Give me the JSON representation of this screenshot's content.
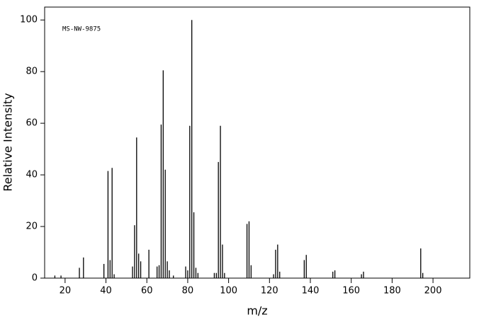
{
  "chart_data": {
    "type": "bar",
    "annotation": "MS-NW-9875",
    "xlabel": "m/z",
    "ylabel": "Relative Intensity",
    "color": "#000000",
    "x": [
      15,
      18,
      27,
      29,
      39,
      41,
      42,
      43,
      44,
      53,
      54,
      55,
      56,
      57,
      61,
      65,
      66,
      67,
      68,
      69,
      70,
      71,
      73,
      79,
      80,
      81,
      82,
      83,
      84,
      85,
      93,
      94,
      95,
      96,
      97,
      98,
      109,
      110,
      111,
      122,
      123,
      124,
      125,
      137,
      138,
      151,
      152,
      165,
      166,
      194,
      195
    ],
    "values": [
      1,
      1,
      4,
      8,
      5.5,
      41.5,
      7,
      42.7,
      1.5,
      4.5,
      20.5,
      54.5,
      9.5,
      6.5,
      11,
      4.5,
      5,
      59.5,
      80.5,
      42,
      6.5,
      3,
      1,
      4.5,
      3,
      59,
      100,
      25.5,
      4,
      2,
      2,
      2,
      45,
      59,
      13,
      2,
      21,
      22,
      5,
      1.5,
      11,
      13,
      2.5,
      7,
      9,
      2.5,
      3,
      1.5,
      2.5,
      11.5,
      2
    ],
    "xlim": [
      10,
      218
    ],
    "ylim": [
      0,
      105
    ],
    "xticks": [
      20,
      40,
      60,
      80,
      100,
      120,
      140,
      160,
      180,
      200
    ],
    "yticks": [
      0,
      20,
      40,
      60,
      80,
      100
    ]
  }
}
